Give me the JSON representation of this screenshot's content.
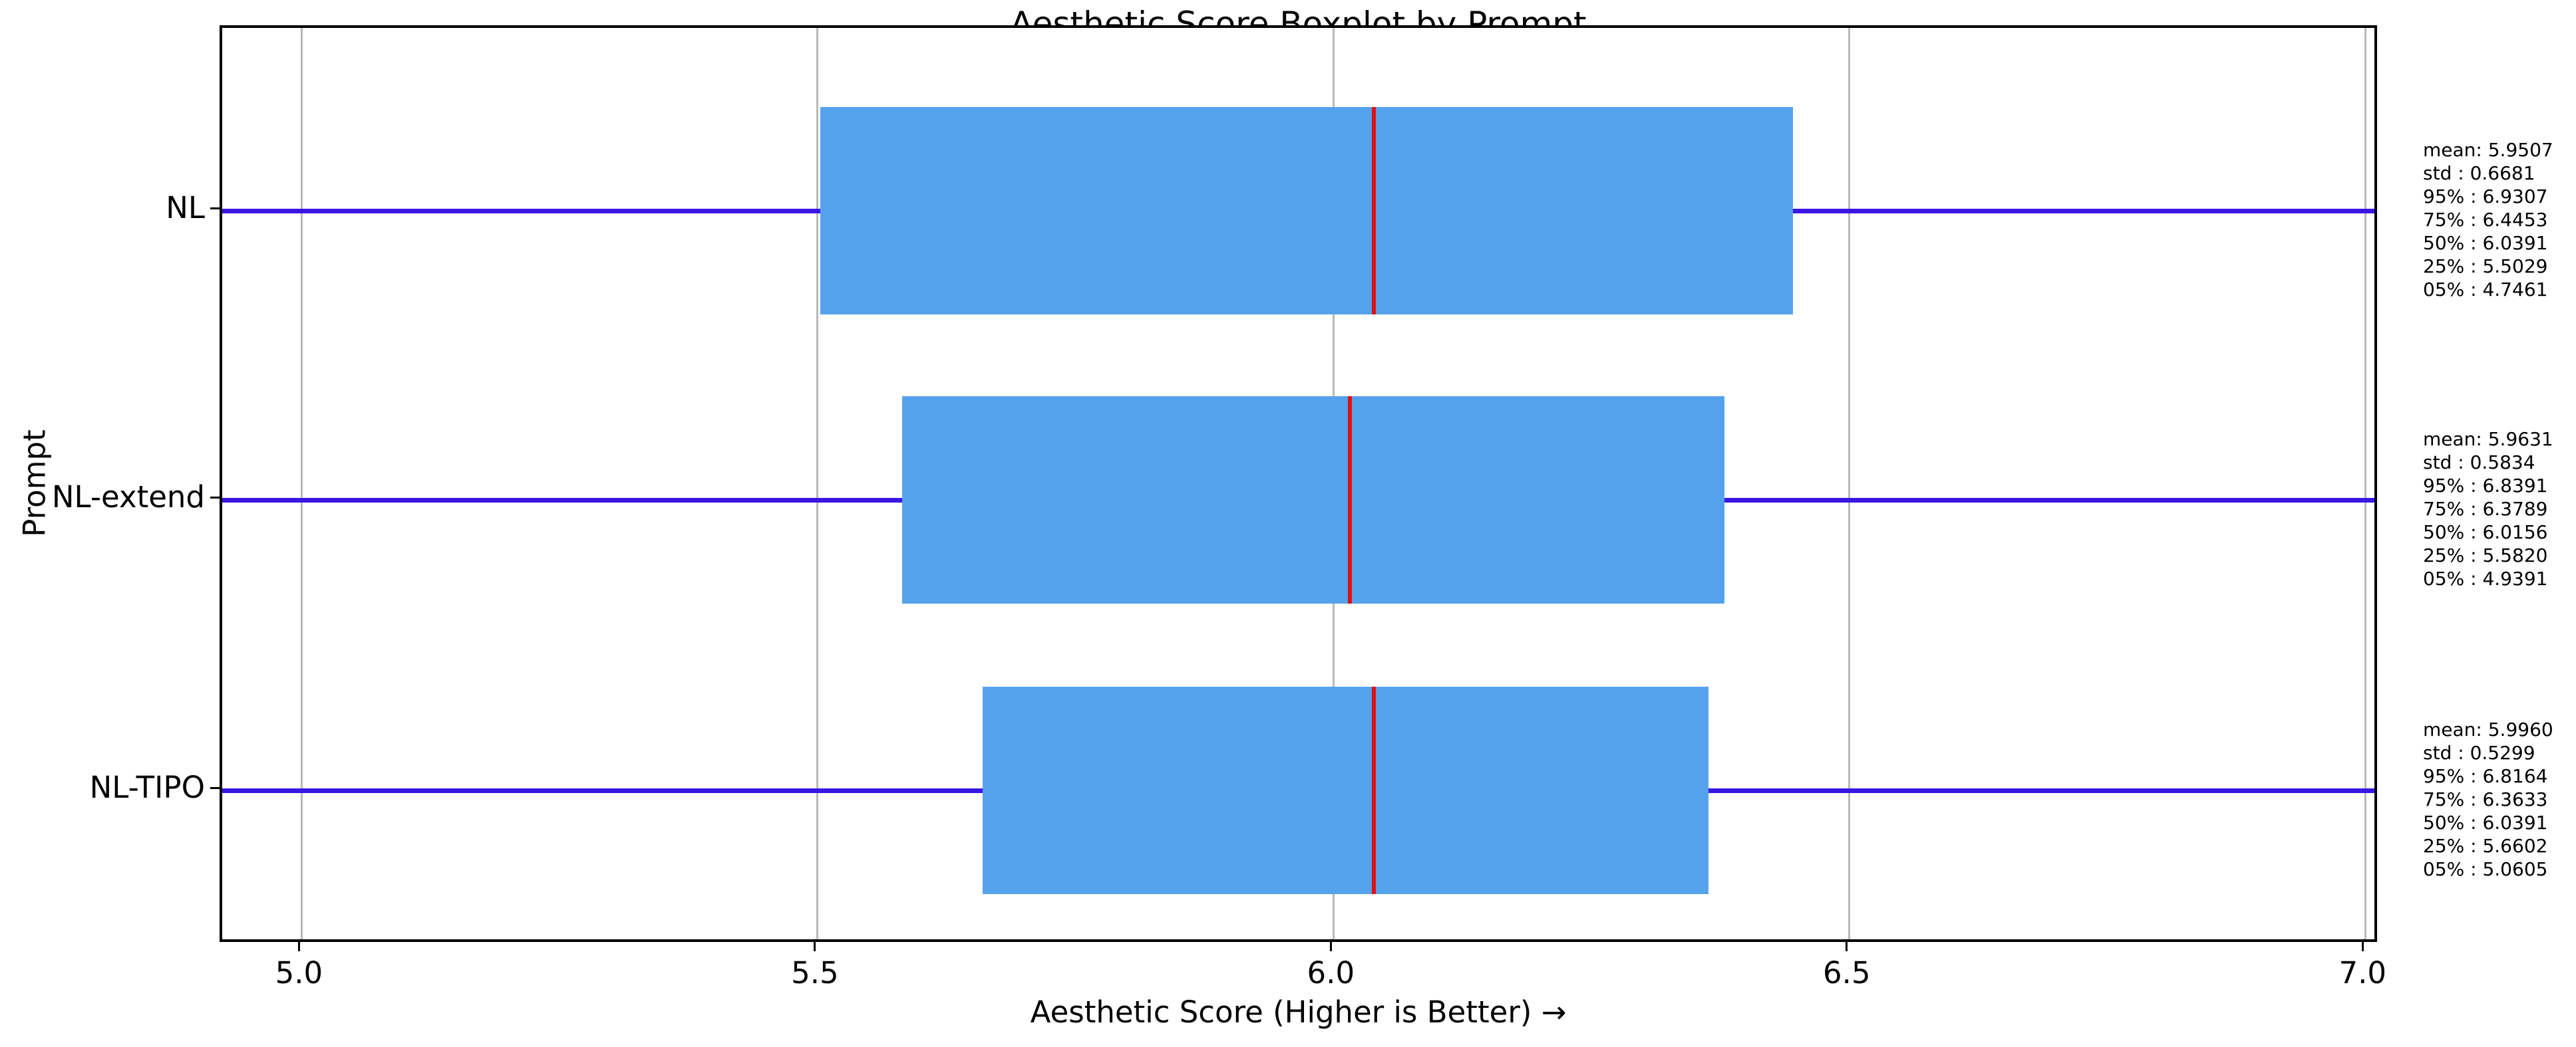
{
  "chart_data": {
    "type": "boxplot",
    "orientation": "horizontal",
    "title": "Aesthetic Score Boxplot by Prompt",
    "xlabel": "Aesthetic Score (Higher is Better) →",
    "ylabel": "Prompt",
    "xlim": [
      4.923,
      7.014
    ],
    "x_ticks": [
      "5.0",
      "5.5",
      "6.0",
      "6.5",
      "7.0"
    ],
    "grid": true,
    "legend": false,
    "categories": [
      "NL",
      "NL-extend",
      "NL-TIPO"
    ],
    "groups": [
      {
        "label": "NL",
        "mean": 5.9507,
        "std": 0.6681,
        "p95": 6.9307,
        "p75": 6.4453,
        "p50": 6.0391,
        "p25": 5.5029,
        "p05": 4.7461,
        "stats_lines": [
          "mean: 5.9507",
          "std : 0.6681",
          "95% : 6.9307",
          "75% : 6.4453",
          "50% : 6.0391",
          "25% : 5.5029",
          "05% : 4.7461"
        ]
      },
      {
        "label": "NL-extend",
        "mean": 5.9631,
        "std": 0.5834,
        "p95": 6.8391,
        "p75": 6.3789,
        "p50": 6.0156,
        "p25": 5.582,
        "p05": 4.9391,
        "stats_lines": [
          "mean: 5.9631",
          "std : 0.5834",
          "95% : 6.8391",
          "75% : 6.3789",
          "50% : 6.0156",
          "25% : 5.5820",
          "05% : 4.9391"
        ]
      },
      {
        "label": "NL-TIPO",
        "mean": 5.996,
        "std": 0.5299,
        "p95": 6.8164,
        "p75": 6.3633,
        "p50": 6.0391,
        "p25": 5.6602,
        "p05": 5.0605,
        "stats_lines": [
          "mean: 5.9960",
          "std : 0.5299",
          "95% : 6.8164",
          "75% : 6.3633",
          "50% : 6.0391",
          "25% : 5.6602",
          "05% : 5.0605"
        ]
      }
    ],
    "colors": {
      "box_fill": "#55a2ec",
      "median": "#e31010",
      "whisker": "#3a16e3",
      "grid": "#b9b9b9",
      "spine": "#000000",
      "text": "#000000"
    }
  }
}
